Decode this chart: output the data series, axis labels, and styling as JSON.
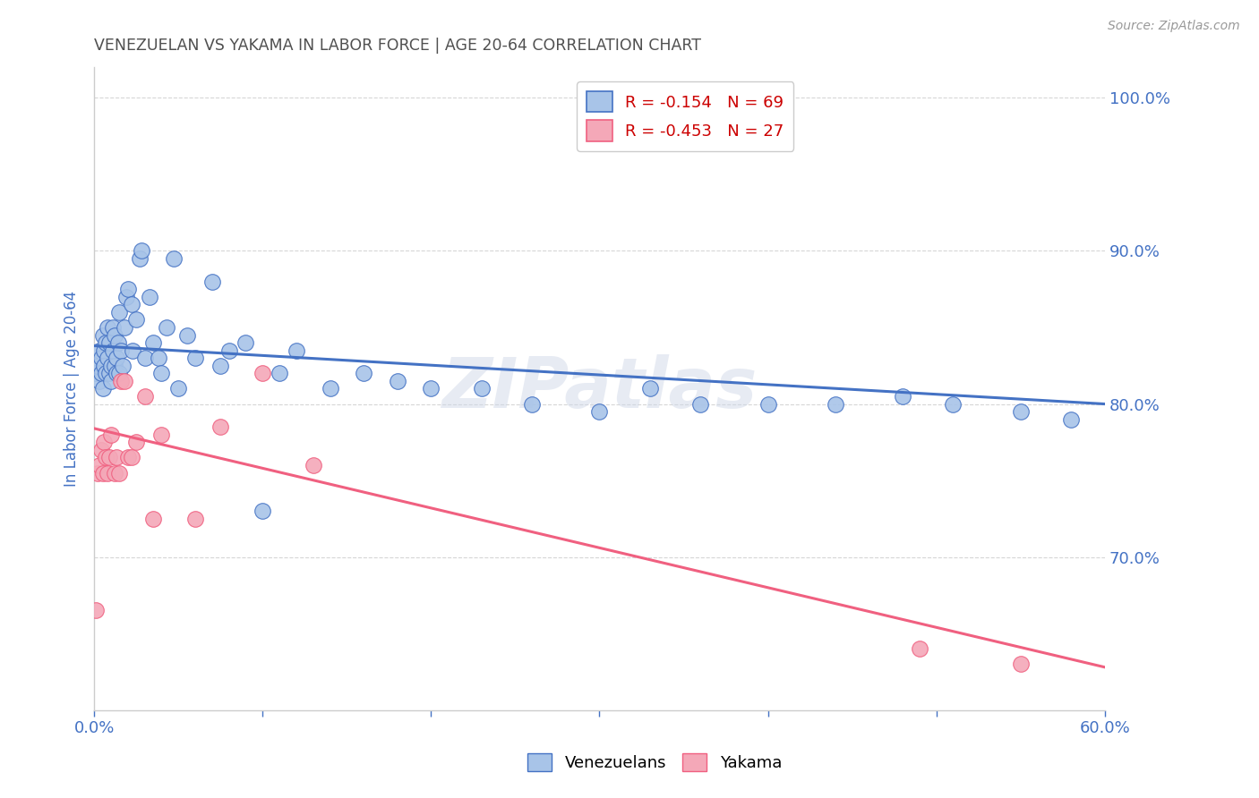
{
  "title": "VENEZUELAN VS YAKAMA IN LABOR FORCE | AGE 20-64 CORRELATION CHART",
  "source": "Source: ZipAtlas.com",
  "ylabel": "In Labor Force | Age 20-64",
  "xlim": [
    0.0,
    0.6
  ],
  "ylim": [
    0.6,
    1.02
  ],
  "yticks": [
    0.7,
    0.8,
    0.9,
    1.0
  ],
  "venezuelan_r": -0.154,
  "venezuelan_n": 69,
  "yakama_r": -0.453,
  "yakama_n": 27,
  "venezuelan_color": "#a8c4e8",
  "yakama_color": "#f4a8b8",
  "venezuelan_line_color": "#4472c4",
  "yakama_line_color": "#f06080",
  "background_color": "#ffffff",
  "grid_color": "#cccccc",
  "axis_label_color": "#4472c4",
  "title_color": "#505050",
  "watermark": "ZIPatlas",
  "venezuelan_x": [
    0.001,
    0.002,
    0.003,
    0.003,
    0.004,
    0.004,
    0.005,
    0.005,
    0.006,
    0.006,
    0.007,
    0.007,
    0.008,
    0.008,
    0.009,
    0.009,
    0.01,
    0.01,
    0.011,
    0.011,
    0.012,
    0.012,
    0.013,
    0.013,
    0.014,
    0.015,
    0.015,
    0.016,
    0.017,
    0.018,
    0.019,
    0.02,
    0.022,
    0.023,
    0.025,
    0.027,
    0.028,
    0.03,
    0.033,
    0.035,
    0.038,
    0.04,
    0.043,
    0.047,
    0.05,
    0.055,
    0.06,
    0.07,
    0.075,
    0.08,
    0.09,
    0.1,
    0.11,
    0.12,
    0.14,
    0.16,
    0.18,
    0.2,
    0.23,
    0.26,
    0.3,
    0.33,
    0.36,
    0.4,
    0.44,
    0.48,
    0.51,
    0.55,
    0.58
  ],
  "venezuelan_y": [
    0.82,
    0.825,
    0.835,
    0.815,
    0.83,
    0.82,
    0.845,
    0.81,
    0.835,
    0.825,
    0.84,
    0.82,
    0.85,
    0.83,
    0.82,
    0.84,
    0.825,
    0.815,
    0.85,
    0.835,
    0.845,
    0.825,
    0.83,
    0.82,
    0.84,
    0.86,
    0.82,
    0.835,
    0.825,
    0.85,
    0.87,
    0.875,
    0.865,
    0.835,
    0.855,
    0.895,
    0.9,
    0.83,
    0.87,
    0.84,
    0.83,
    0.82,
    0.85,
    0.895,
    0.81,
    0.845,
    0.83,
    0.88,
    0.825,
    0.835,
    0.84,
    0.73,
    0.82,
    0.835,
    0.81,
    0.82,
    0.815,
    0.81,
    0.81,
    0.8,
    0.795,
    0.81,
    0.8,
    0.8,
    0.8,
    0.805,
    0.8,
    0.795,
    0.79
  ],
  "yakama_x": [
    0.001,
    0.002,
    0.003,
    0.004,
    0.005,
    0.006,
    0.007,
    0.008,
    0.009,
    0.01,
    0.012,
    0.013,
    0.015,
    0.016,
    0.018,
    0.02,
    0.022,
    0.025,
    0.03,
    0.035,
    0.04,
    0.06,
    0.075,
    0.1,
    0.13,
    0.49,
    0.55
  ],
  "yakama_y": [
    0.665,
    0.755,
    0.76,
    0.77,
    0.755,
    0.775,
    0.765,
    0.755,
    0.765,
    0.78,
    0.755,
    0.765,
    0.755,
    0.815,
    0.815,
    0.765,
    0.765,
    0.775,
    0.805,
    0.725,
    0.78,
    0.725,
    0.785,
    0.82,
    0.76,
    0.64,
    0.63
  ],
  "venezuelan_line_x": [
    0.0,
    0.6
  ],
  "venezuelan_line_y": [
    0.838,
    0.8
  ],
  "yakama_line_x": [
    0.0,
    0.6
  ],
  "yakama_line_y": [
    0.784,
    0.628
  ],
  "legend_r_color": "#cc0000",
  "legend_n_color": "#333333"
}
